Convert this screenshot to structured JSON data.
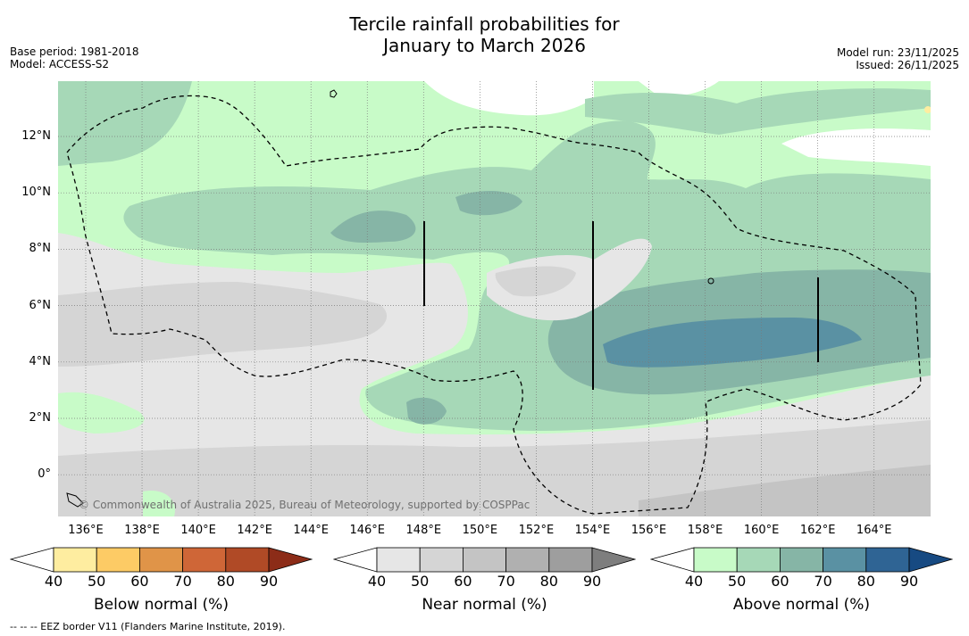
{
  "header": {
    "title_line1": "Tercile rainfall probabilities for",
    "title_line2": "January to March 2026",
    "base_period": "Base period: 1981-2018",
    "model": "Model: ACCESS-S2",
    "model_run": "Model run: 23/11/2025",
    "issued": "Issued: 26/11/2025"
  },
  "map": {
    "lat_labels": [
      "12°N",
      "10°N",
      "8°N",
      "6°N",
      "4°N",
      "2°N",
      "0°"
    ],
    "lon_labels": [
      "136°E",
      "138°E",
      "140°E",
      "142°E",
      "144°E",
      "146°E",
      "148°E",
      "150°E",
      "152°E",
      "154°E",
      "156°E",
      "158°E",
      "160°E",
      "162°E",
      "164°E"
    ],
    "copyright": "© Commonwealth of Australia 2025, Bureau of Meteorology, supported by COSPPac"
  },
  "colorbars": [
    {
      "title": "Below normal (%)",
      "ticks": [
        "40",
        "50",
        "60",
        "70",
        "80",
        "90"
      ],
      "colors": [
        "#ffffff",
        "#feeda0",
        "#fdcb65",
        "#e09448",
        "#cf6637",
        "#b04a26",
        "#8c2c18"
      ]
    },
    {
      "title": "Near normal (%)",
      "ticks": [
        "40",
        "50",
        "60",
        "70",
        "80",
        "90"
      ],
      "colors": [
        "#ffffff",
        "#e6e6e6",
        "#d5d5d5",
        "#c4c4c4",
        "#b0b0b0",
        "#9e9e9e",
        "#7e7e7e"
      ]
    },
    {
      "title": "Above normal (%)",
      "ticks": [
        "40",
        "50",
        "60",
        "70",
        "80",
        "90"
      ],
      "colors": [
        "#ffffff",
        "#c8fbc8",
        "#a6d8b7",
        "#86b5a6",
        "#5a91a3",
        "#2f6494",
        "#174a82"
      ]
    }
  ],
  "footer": "--  --  -- EEZ border V11 (Flanders Marine Institute, 2019)."
}
